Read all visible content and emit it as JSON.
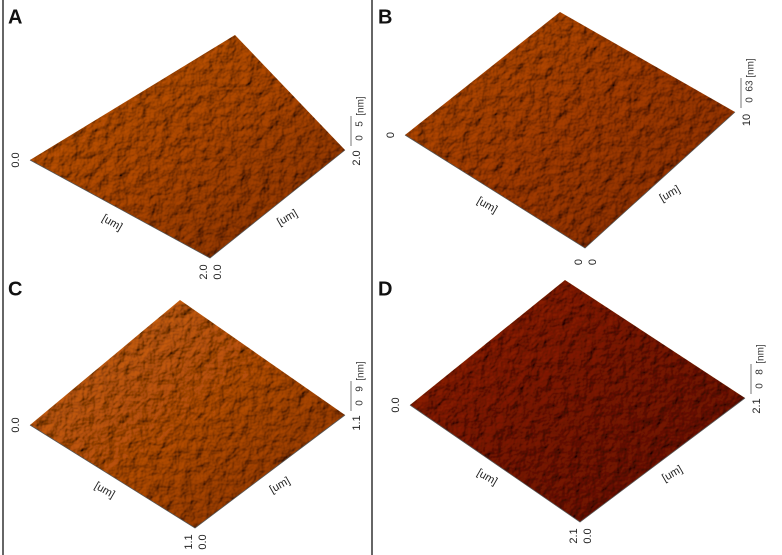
{
  "panels": [
    {
      "letter": "A",
      "x_start": "0.0",
      "x_end": "2.0",
      "y_start": "0.0",
      "y_end": "2.0",
      "x_unit": "[um]",
      "y_unit": "[um]",
      "z_unit": "[nm]",
      "z_ticks": [
        "5",
        "0"
      ]
    },
    {
      "letter": "B",
      "x_start": "0",
      "x_end": "0",
      "y_start": "0",
      "y_end": "10",
      "x_unit": "[um]",
      "y_unit": "[um]",
      "z_unit": "[nm]",
      "z_ticks": [
        "63",
        "0"
      ]
    },
    {
      "letter": "C",
      "x_start": "0.0",
      "x_end": "1.1",
      "y_start": "0.0",
      "y_end": "1.1",
      "x_unit": "[um]",
      "y_unit": "[um]",
      "z_unit": "[nm]",
      "z_ticks": [
        "9",
        "0"
      ]
    },
    {
      "letter": "D",
      "x_start": "0.0",
      "x_end": "2.1",
      "y_start": "0.0",
      "y_end": "2.1",
      "x_unit": "[um]",
      "y_unit": "[um]",
      "z_unit": "[nm]",
      "z_ticks": [
        "8",
        "0"
      ]
    }
  ]
}
